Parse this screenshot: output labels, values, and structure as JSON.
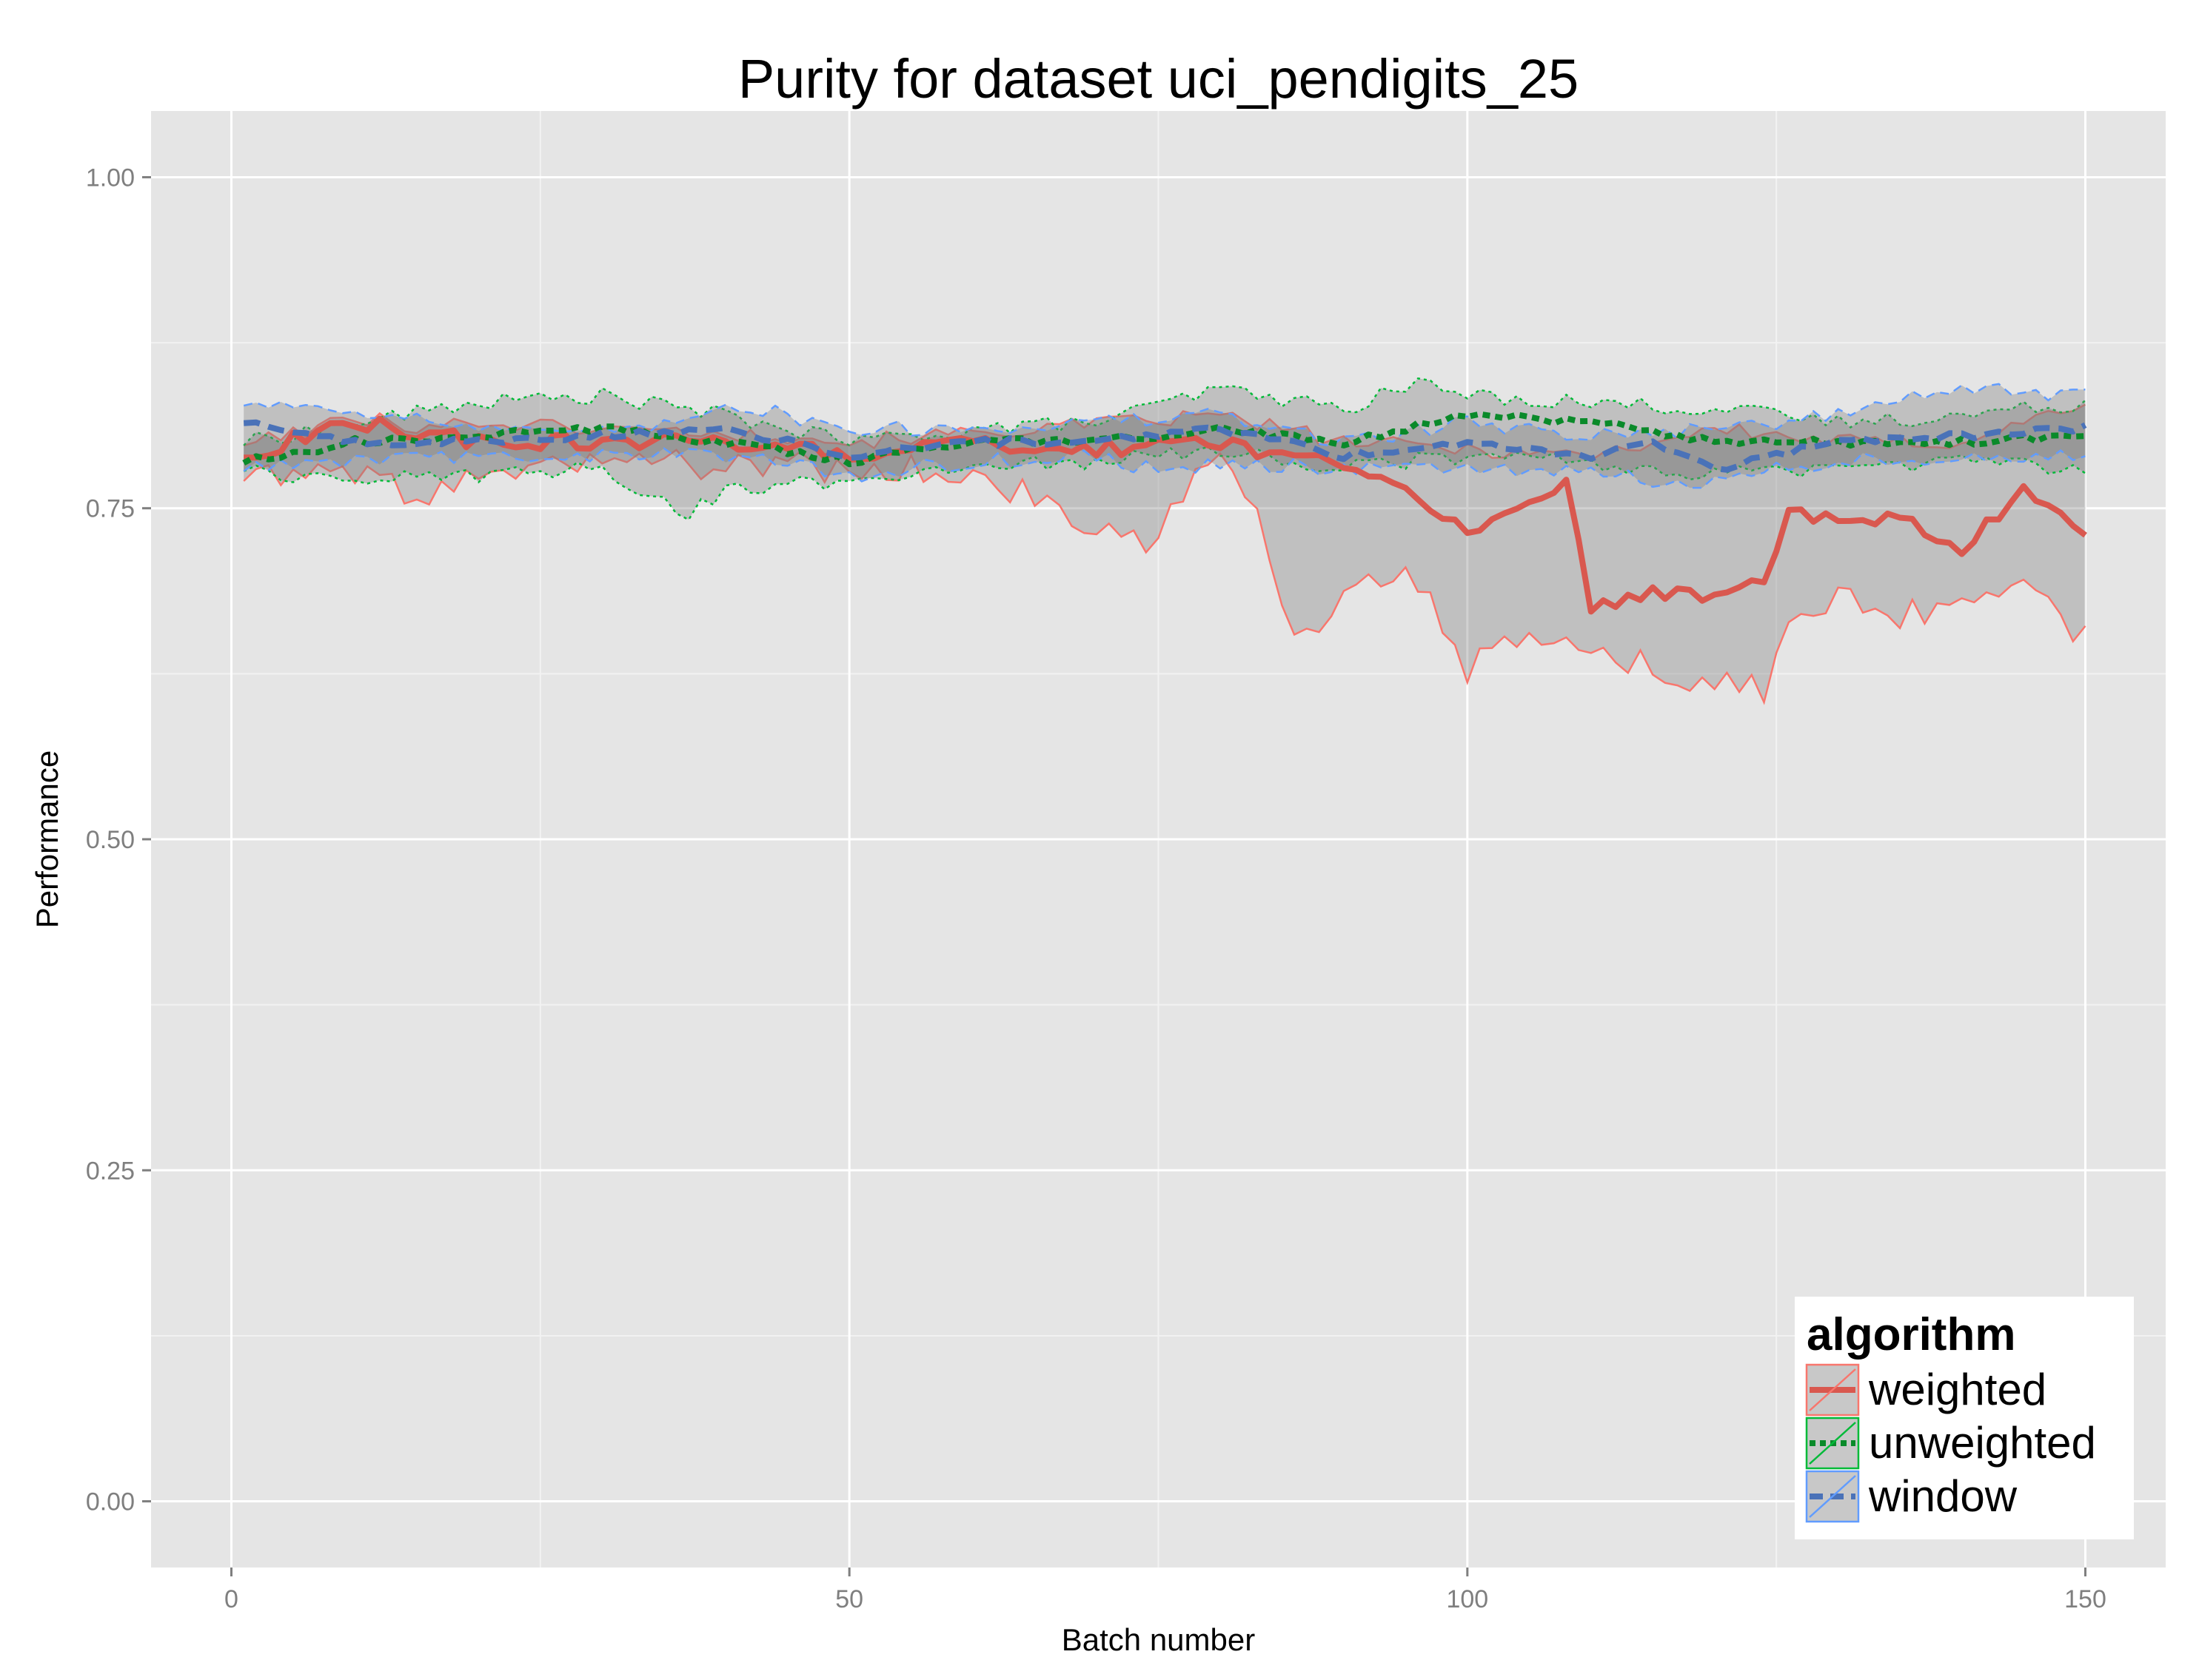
{
  "chart_data": {
    "type": "line",
    "title": "Purity for dataset uci_pendigits_25",
    "xlabel": "Batch number",
    "ylabel": "Performance",
    "xlim": [
      -6.5,
      156.5
    ],
    "ylim": [
      -0.05,
      1.05
    ],
    "x_ticks": [
      0,
      50,
      100,
      150
    ],
    "x_tick_labels": [
      "0",
      "50",
      "100",
      "150"
    ],
    "y_ticks": [
      0,
      0.25,
      0.5,
      0.75,
      1.0
    ],
    "y_tick_labels": [
      "0.00",
      "0.25",
      "0.50",
      "0.75",
      "1.00"
    ],
    "grid": true,
    "legend": {
      "title": "algorithm",
      "position": "bottom-right"
    },
    "series": [
      {
        "name": "weighted",
        "color": "#F8766D",
        "line_color": "#D9584F",
        "linestyle": "solid",
        "knots_mean": [
          [
            1,
            0.79
          ],
          [
            10,
            0.815
          ],
          [
            20,
            0.8
          ],
          [
            30,
            0.8
          ],
          [
            40,
            0.8
          ],
          [
            50,
            0.79
          ],
          [
            60,
            0.8
          ],
          [
            70,
            0.795
          ],
          [
            80,
            0.8
          ],
          [
            85,
            0.79
          ],
          [
            90,
            0.785
          ],
          [
            95,
            0.76
          ],
          [
            100,
            0.735
          ],
          [
            105,
            0.75
          ],
          [
            108,
            0.775
          ],
          [
            110,
            0.675
          ],
          [
            115,
            0.685
          ],
          [
            120,
            0.685
          ],
          [
            124,
            0.7
          ],
          [
            126,
            0.745
          ],
          [
            130,
            0.74
          ],
          [
            135,
            0.745
          ],
          [
            140,
            0.72
          ],
          [
            145,
            0.765
          ],
          [
            148,
            0.745
          ],
          [
            150,
            0.725
          ]
        ],
        "knots_upper": [
          [
            1,
            0.8
          ],
          [
            20,
            0.815
          ],
          [
            50,
            0.8
          ],
          [
            80,
            0.82
          ],
          [
            90,
            0.8
          ],
          [
            110,
            0.79
          ],
          [
            120,
            0.81
          ],
          [
            130,
            0.8
          ],
          [
            140,
            0.8
          ],
          [
            150,
            0.83
          ]
        ],
        "knots_lower": [
          [
            1,
            0.775
          ],
          [
            10,
            0.775
          ],
          [
            15,
            0.76
          ],
          [
            30,
            0.785
          ],
          [
            50,
            0.78
          ],
          [
            60,
            0.78
          ],
          [
            64,
            0.76
          ],
          [
            68,
            0.74
          ],
          [
            72,
            0.73
          ],
          [
            74,
            0.72
          ],
          [
            80,
            0.795
          ],
          [
            84,
            0.72
          ],
          [
            86,
            0.65
          ],
          [
            90,
            0.68
          ],
          [
            95,
            0.71
          ],
          [
            100,
            0.63
          ],
          [
            105,
            0.65
          ],
          [
            110,
            0.645
          ],
          [
            115,
            0.63
          ],
          [
            120,
            0.62
          ],
          [
            124,
            0.61
          ],
          [
            126,
            0.66
          ],
          [
            130,
            0.68
          ],
          [
            135,
            0.67
          ],
          [
            140,
            0.68
          ],
          [
            145,
            0.69
          ],
          [
            150,
            0.65
          ]
        ]
      },
      {
        "name": "unweighted",
        "color": "#00BA38",
        "line_color": "#0A8A2A",
        "linestyle": "dotted",
        "knots_mean": [
          [
            1,
            0.785
          ],
          [
            10,
            0.8
          ],
          [
            20,
            0.805
          ],
          [
            30,
            0.81
          ],
          [
            40,
            0.8
          ],
          [
            50,
            0.785
          ],
          [
            60,
            0.8
          ],
          [
            70,
            0.8
          ],
          [
            80,
            0.81
          ],
          [
            90,
            0.8
          ],
          [
            100,
            0.82
          ],
          [
            110,
            0.815
          ],
          [
            120,
            0.8
          ],
          [
            130,
            0.8
          ],
          [
            140,
            0.8
          ],
          [
            150,
            0.805
          ]
        ],
        "knots_upper": [
          [
            1,
            0.8
          ],
          [
            20,
            0.83
          ],
          [
            30,
            0.835
          ],
          [
            40,
            0.82
          ],
          [
            50,
            0.8
          ],
          [
            60,
            0.81
          ],
          [
            70,
            0.815
          ],
          [
            80,
            0.84
          ],
          [
            90,
            0.825
          ],
          [
            96,
            0.845
          ],
          [
            100,
            0.835
          ],
          [
            110,
            0.83
          ],
          [
            120,
            0.825
          ],
          [
            130,
            0.815
          ],
          [
            140,
            0.82
          ],
          [
            150,
            0.83
          ]
        ],
        "knots_lower": [
          [
            1,
            0.78
          ],
          [
            10,
            0.77
          ],
          [
            20,
            0.775
          ],
          [
            30,
            0.78
          ],
          [
            37,
            0.745
          ],
          [
            40,
            0.765
          ],
          [
            50,
            0.77
          ],
          [
            60,
            0.785
          ],
          [
            70,
            0.785
          ],
          [
            80,
            0.795
          ],
          [
            90,
            0.78
          ],
          [
            100,
            0.79
          ],
          [
            110,
            0.785
          ],
          [
            120,
            0.775
          ],
          [
            130,
            0.78
          ],
          [
            140,
            0.785
          ],
          [
            150,
            0.78
          ]
        ]
      },
      {
        "name": "window",
        "color": "#619CFF",
        "line_color": "#4A72B8",
        "linestyle": "dashed",
        "knots_mean": [
          [
            1,
            0.815
          ],
          [
            10,
            0.8
          ],
          [
            20,
            0.8
          ],
          [
            30,
            0.805
          ],
          [
            40,
            0.81
          ],
          [
            50,
            0.79
          ],
          [
            60,
            0.8
          ],
          [
            70,
            0.8
          ],
          [
            80,
            0.81
          ],
          [
            90,
            0.79
          ],
          [
            100,
            0.8
          ],
          [
            110,
            0.79
          ],
          [
            115,
            0.8
          ],
          [
            120,
            0.78
          ],
          [
            130,
            0.8
          ],
          [
            140,
            0.805
          ],
          [
            150,
            0.81
          ]
        ],
        "knots_upper": [
          [
            1,
            0.83
          ],
          [
            10,
            0.825
          ],
          [
            20,
            0.81
          ],
          [
            30,
            0.8
          ],
          [
            40,
            0.83
          ],
          [
            50,
            0.81
          ],
          [
            60,
            0.81
          ],
          [
            70,
            0.815
          ],
          [
            80,
            0.82
          ],
          [
            90,
            0.8
          ],
          [
            100,
            0.815
          ],
          [
            110,
            0.805
          ],
          [
            120,
            0.81
          ],
          [
            130,
            0.82
          ],
          [
            138,
            0.84
          ],
          [
            150,
            0.835
          ]
        ],
        "knots_lower": [
          [
            1,
            0.78
          ],
          [
            10,
            0.785
          ],
          [
            20,
            0.79
          ],
          [
            30,
            0.79
          ],
          [
            40,
            0.79
          ],
          [
            50,
            0.775
          ],
          [
            60,
            0.785
          ],
          [
            70,
            0.79
          ],
          [
            76,
            0.775
          ],
          [
            80,
            0.785
          ],
          [
            90,
            0.78
          ],
          [
            100,
            0.78
          ],
          [
            110,
            0.775
          ],
          [
            118,
            0.77
          ],
          [
            130,
            0.785
          ],
          [
            140,
            0.79
          ],
          [
            150,
            0.79
          ]
        ]
      }
    ]
  }
}
